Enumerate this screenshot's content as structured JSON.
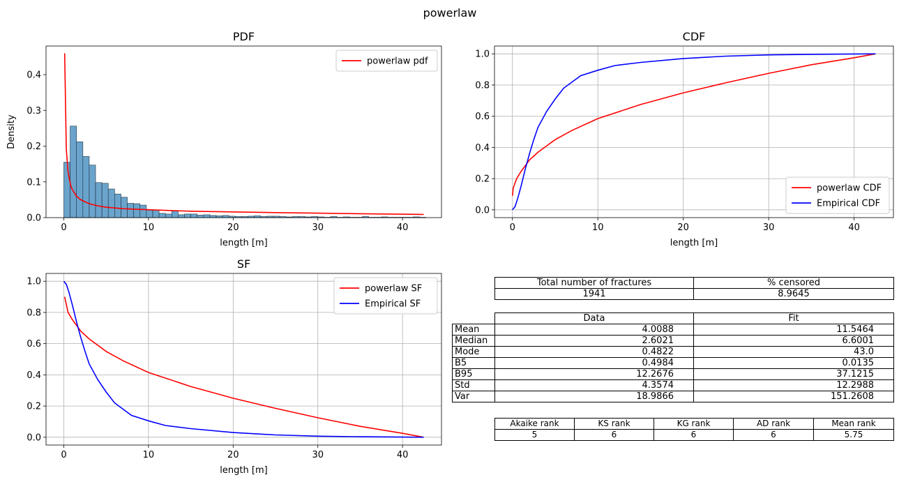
{
  "figure": {
    "suptitle": "powerlaw"
  },
  "chart_data": [
    {
      "type": "histogram+line",
      "title": "PDF",
      "xlabel": "length [m]",
      "ylabel": "Density",
      "xlim": [
        -2.1,
        44.6
      ],
      "ylim": [
        0,
        0.48
      ],
      "xticks": [
        0,
        10,
        20,
        30,
        40
      ],
      "yticks": [
        0.0,
        0.1,
        0.2,
        0.3,
        0.4
      ],
      "grid": false,
      "legend_position": "upper right",
      "histogram": {
        "bin_width": 0.75,
        "start": 0,
        "values": [
          0.155,
          0.256,
          0.212,
          0.171,
          0.147,
          0.098,
          0.096,
          0.08,
          0.066,
          0.057,
          0.04,
          0.039,
          0.035,
          0.023,
          0.021,
          0.012,
          0.01,
          0.019,
          0.008,
          0.01,
          0.01,
          0.007,
          0.008,
          0.006,
          0.005,
          0.006,
          0.004,
          0.003,
          0.003,
          0.004,
          0.005,
          0.003,
          0.004,
          0.004,
          0.003,
          0.002,
          0.003,
          0.003,
          0.002,
          0.003,
          0.002,
          0.001,
          0.003,
          0.001,
          0.002,
          0.001,
          0.001,
          0.003,
          0.001,
          0.001,
          0.002,
          0.001,
          0.001,
          0.001,
          0.001,
          0.002,
          0.001
        ]
      },
      "series": [
        {
          "name": "powerlaw pdf",
          "color": "#ff0000",
          "x": [
            0.1,
            0.3,
            0.5,
            0.8,
            1,
            1.5,
            2,
            3,
            4,
            5,
            7,
            10,
            15,
            20,
            25,
            30,
            35,
            40,
            42.5
          ],
          "y": [
            0.46,
            0.19,
            0.128,
            0.091,
            0.079,
            0.06,
            0.05,
            0.039,
            0.033,
            0.029,
            0.025,
            0.022,
            0.018,
            0.016,
            0.014,
            0.0125,
            0.011,
            0.0095,
            0.009
          ]
        }
      ]
    },
    {
      "type": "line",
      "title": "CDF",
      "xlabel": "length [m]",
      "ylabel": "",
      "xlim": [
        -2.1,
        44.6
      ],
      "ylim": [
        -0.05,
        1.05
      ],
      "xticks": [
        0,
        10,
        20,
        30,
        40
      ],
      "yticks": [
        0.0,
        0.2,
        0.4,
        0.6,
        0.8,
        1.0
      ],
      "grid": true,
      "legend_position": "lower right",
      "series": [
        {
          "name": "powerlaw CDF",
          "color": "#ff0000",
          "x": [
            0,
            0.1,
            0.5,
            1,
            2,
            3,
            5,
            7,
            10,
            15,
            20,
            25,
            30,
            35,
            40,
            42.5
          ],
          "y": [
            0.09,
            0.14,
            0.2,
            0.245,
            0.32,
            0.37,
            0.45,
            0.51,
            0.585,
            0.675,
            0.75,
            0.815,
            0.875,
            0.93,
            0.975,
            1.0
          ]
        },
        {
          "name": "Empirical CDF",
          "color": "#0000ff",
          "x": [
            0,
            0.3,
            0.6,
            1,
            1.5,
            2,
            2.5,
            3,
            4,
            5,
            6,
            7,
            8,
            10,
            12,
            15,
            20,
            25,
            30,
            35,
            42.5
          ],
          "y": [
            0.0,
            0.02,
            0.07,
            0.15,
            0.26,
            0.36,
            0.45,
            0.53,
            0.63,
            0.71,
            0.78,
            0.82,
            0.86,
            0.895,
            0.925,
            0.945,
            0.97,
            0.985,
            0.993,
            0.997,
            1.0
          ]
        }
      ]
    },
    {
      "type": "line",
      "title": "SF",
      "xlabel": "length [m]",
      "ylabel": "",
      "xlim": [
        -2.1,
        44.6
      ],
      "ylim": [
        -0.05,
        1.05
      ],
      "xticks": [
        0,
        10,
        20,
        30,
        40
      ],
      "yticks": [
        0.0,
        0.2,
        0.4,
        0.6,
        0.8,
        1.0
      ],
      "grid": true,
      "legend_position": "upper right",
      "series": [
        {
          "name": "powerlaw SF",
          "color": "#ff0000",
          "x": [
            0.1,
            0.5,
            1,
            2,
            3,
            5,
            7,
            10,
            15,
            20,
            25,
            30,
            35,
            40,
            42.5
          ],
          "y": [
            0.9,
            0.8,
            0.755,
            0.68,
            0.63,
            0.55,
            0.49,
            0.415,
            0.325,
            0.25,
            0.185,
            0.125,
            0.07,
            0.025,
            0.0
          ]
        },
        {
          "name": "Empirical SF",
          "color": "#0000ff",
          "x": [
            0,
            0.3,
            0.6,
            1,
            1.5,
            2,
            2.5,
            3,
            4,
            5,
            6,
            7,
            8,
            10,
            12,
            15,
            20,
            25,
            30,
            35,
            42.5
          ],
          "y": [
            1.0,
            0.98,
            0.93,
            0.85,
            0.74,
            0.64,
            0.55,
            0.47,
            0.37,
            0.29,
            0.22,
            0.18,
            0.14,
            0.105,
            0.075,
            0.055,
            0.03,
            0.015,
            0.007,
            0.003,
            0.0
          ]
        }
      ]
    }
  ],
  "tables": {
    "counts": {
      "headers": [
        "Total number of fractures",
        "% censored"
      ],
      "values": [
        "1941",
        "8.9645"
      ]
    },
    "stats": {
      "headers": [
        "Data",
        "Fit"
      ],
      "rows": [
        {
          "label": "Mean",
          "data": "4.0088",
          "fit": "11.5464"
        },
        {
          "label": "Median",
          "data": "2.6021",
          "fit": "6.6001"
        },
        {
          "label": "Mode",
          "data": "0.4822",
          "fit": "43.0"
        },
        {
          "label": "B5",
          "data": "0.4984",
          "fit": "0.0135"
        },
        {
          "label": "B95",
          "data": "12.2676",
          "fit": "37.1215"
        },
        {
          "label": "Std",
          "data": "4.3574",
          "fit": "12.2988"
        },
        {
          "label": "Var",
          "data": "18.9866",
          "fit": "151.2608"
        }
      ]
    },
    "ranks": {
      "headers": [
        "Akaike rank",
        "KS rank",
        "KG rank",
        "AD rank",
        "Mean rank"
      ],
      "values": [
        "5",
        "6",
        "6",
        "6",
        "5.75"
      ]
    }
  }
}
